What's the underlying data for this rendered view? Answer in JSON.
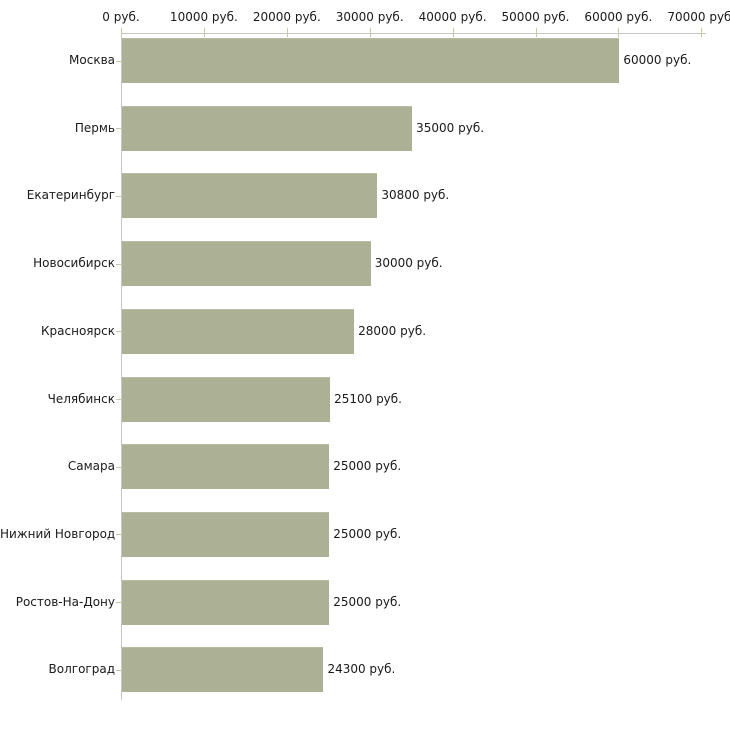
{
  "chart_data": {
    "type": "bar",
    "orientation": "horizontal",
    "title": "",
    "xlabel": "",
    "ylabel": "",
    "grid": false,
    "legend": null,
    "categories": [
      "Москва",
      "Пермь",
      "Екатеринбург",
      "Новосибирск",
      "Красноярск",
      "Челябинск",
      "Самара",
      "Нижний Новгород",
      "Ростов-На-Дону",
      "Волгоград"
    ],
    "values": [
      60000,
      35000,
      30800,
      30000,
      28000,
      25100,
      25000,
      25000,
      25000,
      24300
    ],
    "value_labels": [
      "60000 руб.",
      "35000 руб.",
      "30800 руб.",
      "30000 руб.",
      "28000 руб.",
      "25100 руб.",
      "25000 руб.",
      "25000 руб.",
      "25000 руб.",
      "24300 руб."
    ],
    "x_axis": {
      "min": 0,
      "max": 70000,
      "tick_step": 10000,
      "tick_values": [
        0,
        10000,
        20000,
        30000,
        40000,
        50000,
        60000,
        70000
      ],
      "tick_labels": [
        "0 руб.",
        "10000 руб.",
        "20000 руб.",
        "30000 руб.",
        "40000 руб.",
        "50000 руб.",
        "60000 руб.",
        "70000 руб."
      ]
    },
    "colors": {
      "bar_fill": "#acb196",
      "bar_edge": "#b9bda6",
      "axis_line": "#c6c6c6",
      "tick_mark": "#c8c8a0",
      "text": "#1a1a1a",
      "background": "#ffffff"
    }
  }
}
